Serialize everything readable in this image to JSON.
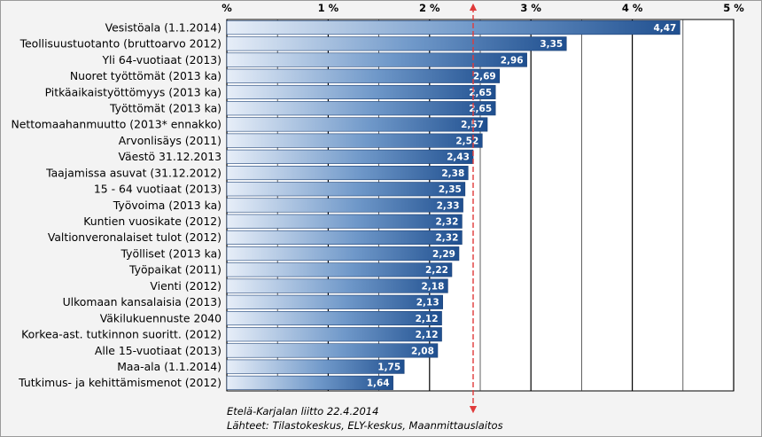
{
  "chart_data": {
    "type": "bar",
    "orientation": "horizontal",
    "x_tick_labels": [
      "%",
      "1 %",
      "2 %",
      "3 %",
      "4 %",
      "5 %"
    ],
    "xlim": [
      0,
      5
    ],
    "grid": true,
    "reference_line": {
      "value": 2.43,
      "style": "dashed",
      "color": "#e03a3a"
    },
    "bar_color": "#2f5d9a",
    "categories": [
      "Vesistöala (1.1.2014)",
      "Teollisuustuotanto (bruttoarvo 2012)",
      "Yli 64-vuotiaat (2013)",
      "Nuoret työttömät (2013 ka)",
      "Pitkäaikaistyöttömyys (2013 ka)",
      "Työttömät (2013 ka)",
      "Nettomaahanmuutto (2013* ennakko)",
      "Arvonlisäys (2011)",
      "Väestö 31.12.2013",
      "Taajamissa asuvat (31.12.2012)",
      "15 - 64 vuotiaat (2013)",
      "Työvoima (2013 ka)",
      "Kuntien vuosikate (2012)",
      "Valtionveronalaiset tulot (2012)",
      "Työlliset (2013 ka)",
      "Työpaikat (2011)",
      "Vienti (2012)",
      "Ulkomaan kansalaisia (2013)",
      "Väkilukuennuste 2040",
      "Korkea-ast. tutkinnon suoritt. (2012)",
      "Alle 15-vuotiaat (2013)",
      "Maa-ala (1.1.2014)",
      "Tutkimus- ja kehittämismenot (2012)"
    ],
    "values": [
      4.47,
      3.35,
      2.96,
      2.69,
      2.65,
      2.65,
      2.57,
      2.52,
      2.43,
      2.38,
      2.35,
      2.33,
      2.32,
      2.32,
      2.29,
      2.22,
      2.18,
      2.13,
      2.12,
      2.12,
      2.08,
      1.75,
      1.64
    ],
    "value_labels": [
      "4,47",
      "3,35",
      "2,96",
      "2,69",
      "2,65",
      "2,65",
      "2,57",
      "2,52",
      "2,43",
      "2,38",
      "2,35",
      "2,33",
      "2,32",
      "2,32",
      "2,29",
      "2,22",
      "2,18",
      "2,13",
      "2,12",
      "2,12",
      "2,08",
      "1,75",
      "1,64"
    ],
    "footnotes": [
      "Etelä-Karjalan liitto 22.4.2014",
      "Lähteet: Tilastokeskus, ELY-keskus, Maanmittauslaitos"
    ]
  }
}
